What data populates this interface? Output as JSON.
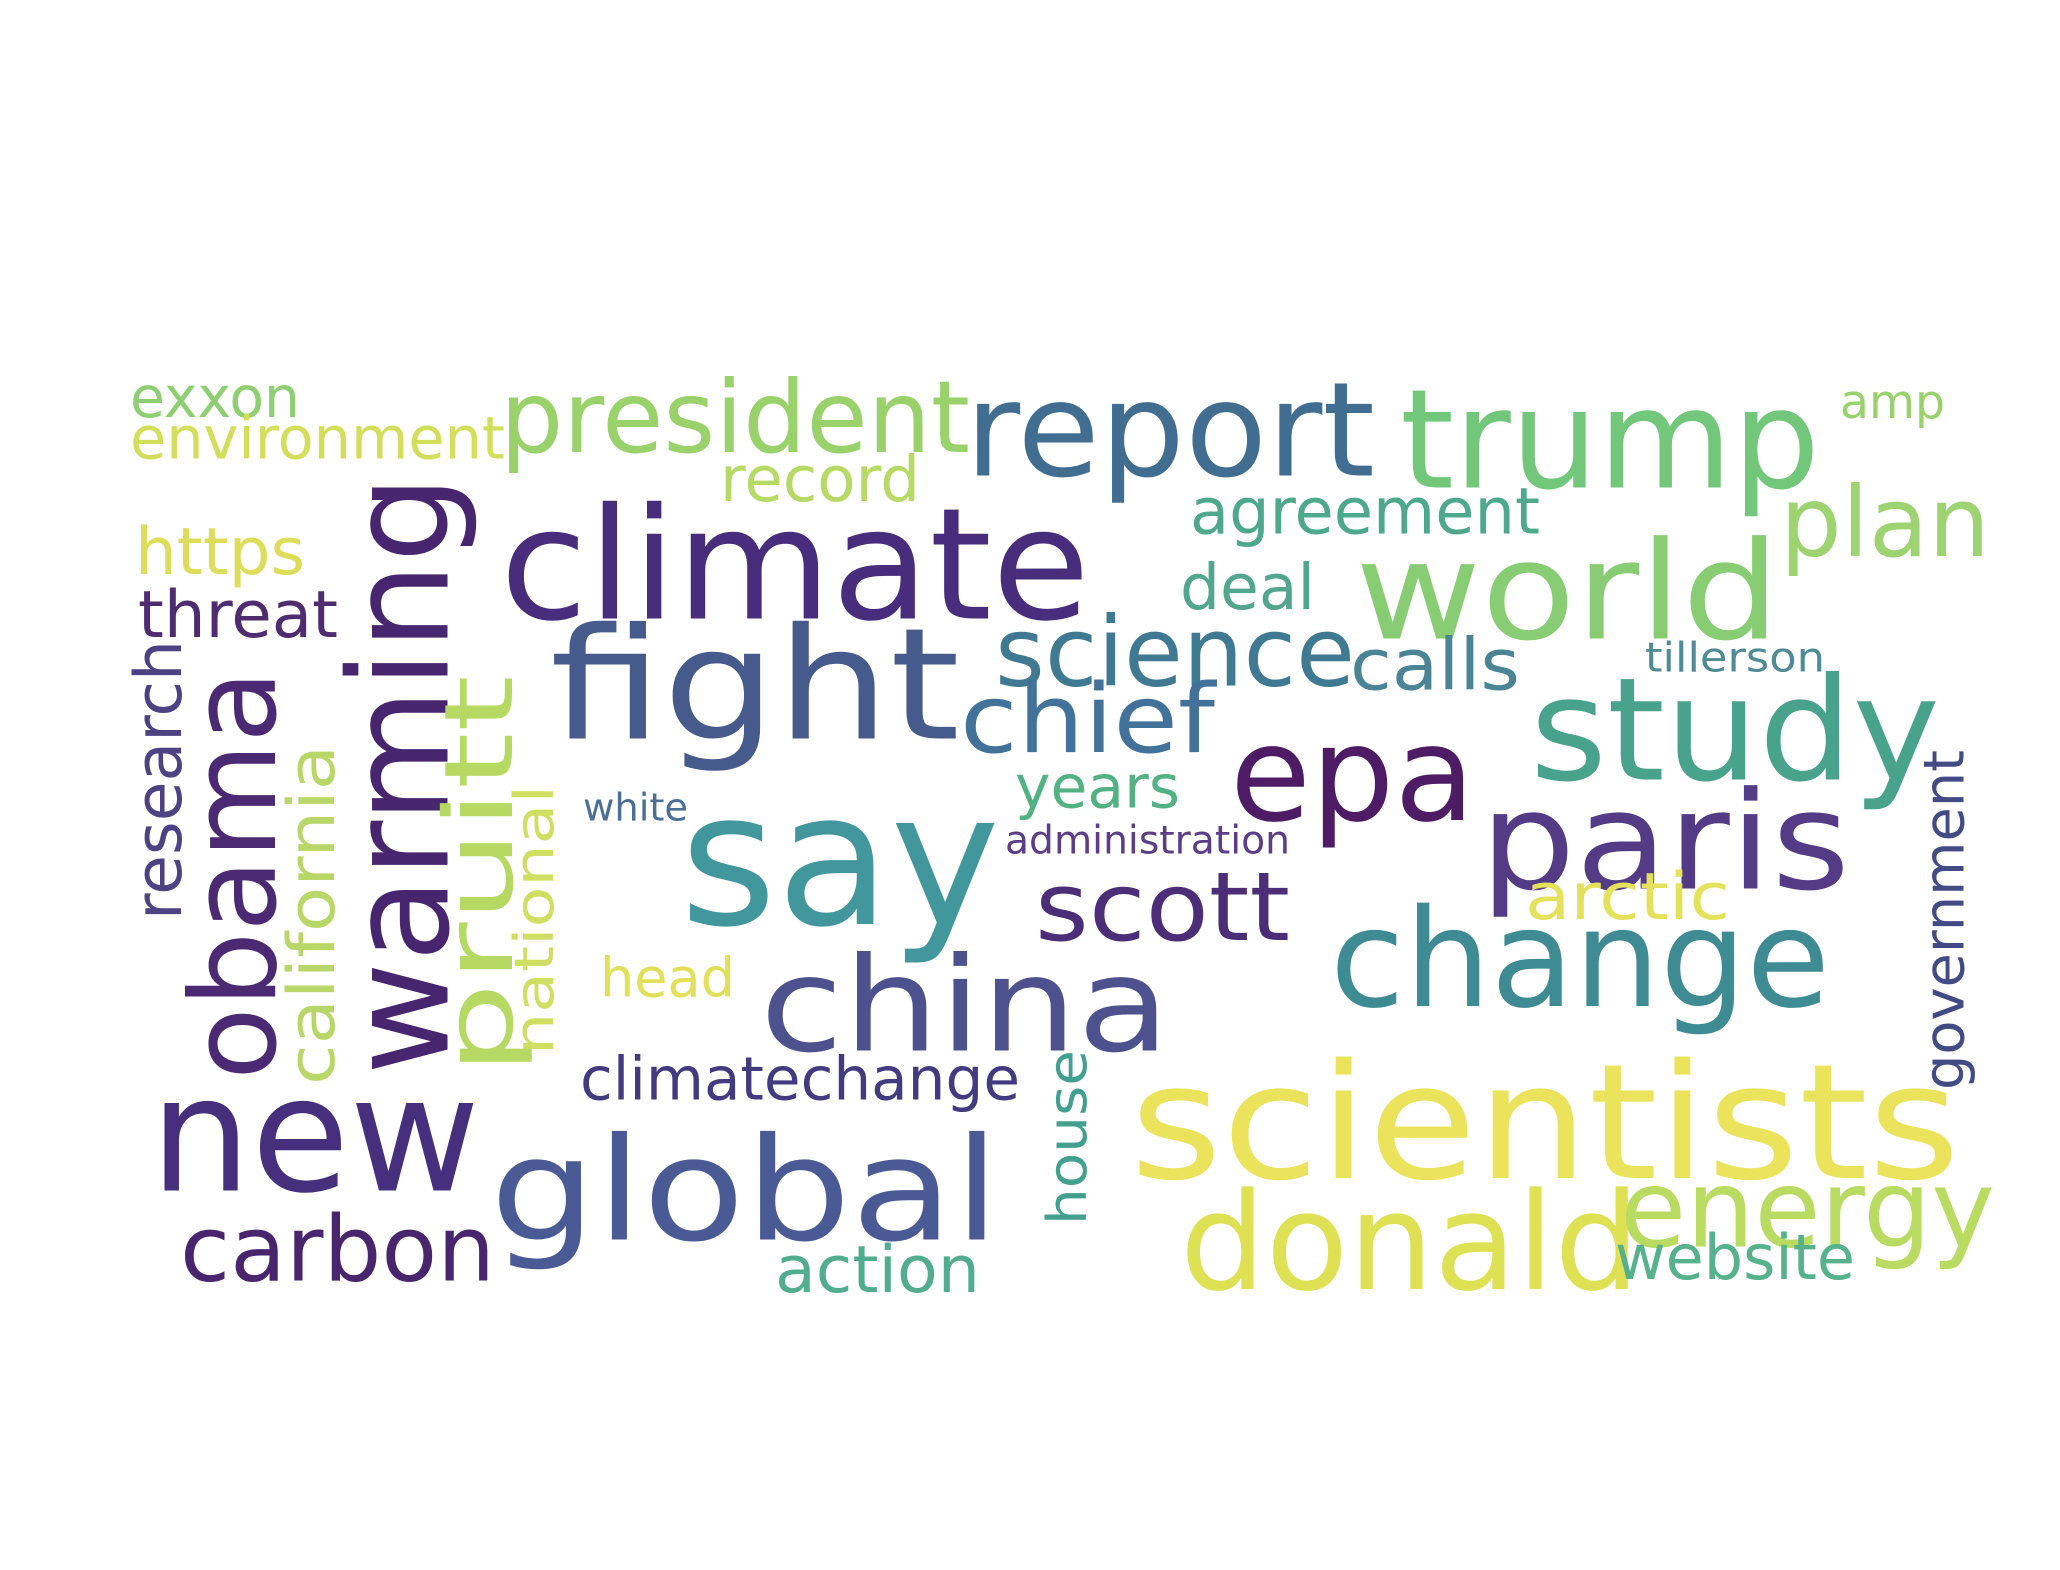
{
  "words": [
    {
      "text": "say",
      "color": "#42979d"
    },
    {
      "text": "new",
      "color": "#462f7c"
    },
    {
      "text": "climate",
      "color": "#472d7b"
    },
    {
      "text": "trump",
      "color": "#73c77b"
    },
    {
      "text": "world",
      "color": "#88cd73"
    },
    {
      "text": "fight",
      "color": "#465a8c"
    },
    {
      "text": "epa",
      "color": "#4d1c65"
    },
    {
      "text": "study",
      "color": "#48a28c"
    },
    {
      "text": "change",
      "color": "#3e8b93"
    },
    {
      "text": "paris",
      "color": "#533b86"
    },
    {
      "text": "report",
      "color": "#416d91"
    },
    {
      "text": "global",
      "color": "#4a5a94"
    },
    {
      "text": "china",
      "color": "#4d528e"
    },
    {
      "text": "scientists",
      "color": "#ebe35c"
    },
    {
      "text": "donald",
      "color": "#dfe154"
    },
    {
      "text": "obama",
      "color": "#4c2a73"
    },
    {
      "text": "warming",
      "color": "#48256f"
    },
    {
      "text": "pruitt",
      "color": "#b5d962"
    },
    {
      "text": "president",
      "color": "#99d16b"
    },
    {
      "text": "science",
      "color": "#3f7a92"
    },
    {
      "text": "chief",
      "color": "#42729a"
    },
    {
      "text": "scott",
      "color": "#4c2e78"
    },
    {
      "text": "energy",
      "color": "#b9db62"
    },
    {
      "text": "carbon",
      "color": "#49256e"
    },
    {
      "text": "plan",
      "color": "#9dd371"
    },
    {
      "text": "agreement",
      "color": "#4ea88c"
    },
    {
      "text": "exxon",
      "color": "#8fcf73"
    },
    {
      "text": "environment",
      "color": "#d3df5a"
    },
    {
      "text": "record",
      "color": "#b7d965"
    },
    {
      "text": "https",
      "color": "#dddd5a"
    },
    {
      "text": "threat",
      "color": "#4f2b6f"
    },
    {
      "text": "deal",
      "color": "#52a68d"
    },
    {
      "text": "calls",
      "color": "#4a8495"
    },
    {
      "text": "years",
      "color": "#53b284"
    },
    {
      "text": "arctic",
      "color": "#e4e25c"
    },
    {
      "text": "head",
      "color": "#e2e058"
    },
    {
      "text": "climatechange",
      "color": "#443a80"
    },
    {
      "text": "action",
      "color": "#52ad8f"
    },
    {
      "text": "website",
      "color": "#56b18d"
    },
    {
      "text": "research",
      "color": "#4d4383"
    },
    {
      "text": "california",
      "color": "#b8d768"
    },
    {
      "text": "national",
      "color": "#cfdf61"
    },
    {
      "text": "government",
      "color": "#424b83"
    },
    {
      "text": "house",
      "color": "#43a08f"
    },
    {
      "text": "white",
      "color": "#4c6f98"
    },
    {
      "text": "administration",
      "color": "#5b3d88"
    },
    {
      "text": "tillerson",
      "color": "#4f8b95"
    },
    {
      "text": "amp",
      "color": "#99d16b"
    }
  ]
}
